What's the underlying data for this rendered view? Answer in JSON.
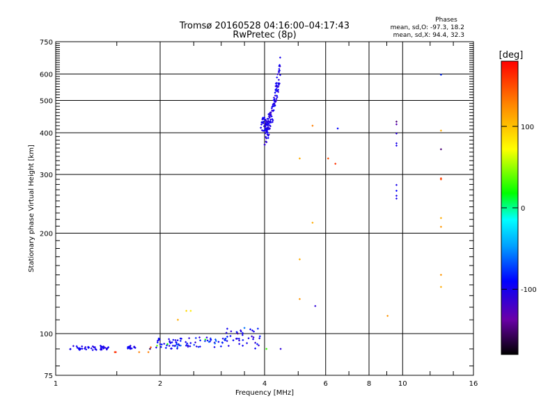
{
  "chart_data": {
    "type": "scatter",
    "title": "Tromsø 20160528 04:16:00–04:17:43",
    "subtitle": "RwPretec (8p)",
    "xlabel": "Frequency [MHz]",
    "ylabel": "Stationary phase Virtual Height [km]",
    "x_scale": "log",
    "y_scale": "log",
    "xlim": [
      1,
      16
    ],
    "ylim": [
      75,
      750
    ],
    "x_ticks": [
      1,
      2,
      4,
      6,
      8,
      10,
      16
    ],
    "x_tick_labels": [
      "1",
      "2",
      "4",
      "6",
      "8",
      "10",
      "16"
    ],
    "y_ticks": [
      75,
      100,
      200,
      300,
      400,
      500,
      600,
      750
    ],
    "y_tick_labels": [
      "75",
      "100",
      "200",
      "300",
      "400",
      "500",
      "600",
      "750"
    ],
    "grid": true,
    "phases": {
      "heading": "Phases",
      "line_o": "mean, sd,O: -97.3, 18.2",
      "line_x": "mean, sd,X: 94.4, 32.3"
    },
    "colorbar": {
      "label": "[deg]",
      "ticks": [
        100,
        0,
        -100
      ],
      "tick_labels": [
        "100",
        "0",
        "-100"
      ],
      "range": [
        -180,
        180
      ]
    },
    "clusters": [
      {
        "xr": [
          1.1,
          1.42
        ],
        "yr": [
          89,
          92
        ],
        "n": 45,
        "phase": [
          -110,
          -90
        ]
      },
      {
        "xr": [
          1.6,
          1.72
        ],
        "yr": [
          90,
          92
        ],
        "n": 14,
        "phase": [
          -110,
          -90
        ]
      },
      {
        "xr": [
          1.88,
          2.25
        ],
        "yr": [
          90,
          97
        ],
        "n": 28,
        "phase": [
          -110,
          -85
        ]
      },
      {
        "xr": [
          2.2,
          3.1
        ],
        "yr": [
          91,
          98
        ],
        "n": 50,
        "phase": [
          -115,
          -60
        ]
      },
      {
        "xr": [
          3.1,
          3.9
        ],
        "yr": [
          90,
          104
        ],
        "n": 36,
        "phase": [
          -115,
          -80
        ]
      },
      {
        "xr": [
          3.9,
          4.1
        ],
        "yr": [
          400,
          445
        ],
        "n": 40,
        "phase": [
          -110,
          -90
        ]
      },
      {
        "xr": [
          4.0,
          4.45
        ],
        "yr": [
          400,
          640
        ],
        "n": 110,
        "phase": [
          -115,
          -90
        ]
      }
    ],
    "points": [
      {
        "x": 1.48,
        "y": 88,
        "phase": 150
      },
      {
        "x": 1.49,
        "y": 88,
        "phase": 170
      },
      {
        "x": 1.85,
        "y": 88,
        "phase": 130
      },
      {
        "x": 1.87,
        "y": 90,
        "phase": -160
      },
      {
        "x": 1.88,
        "y": 91,
        "phase": 150
      },
      {
        "x": 1.74,
        "y": 88,
        "phase": 130
      },
      {
        "x": 1.96,
        "y": 92,
        "phase": 40
      },
      {
        "x": 2.25,
        "y": 110,
        "phase": 110
      },
      {
        "x": 2.38,
        "y": 117,
        "phase": 90
      },
      {
        "x": 2.45,
        "y": 117,
        "phase": 80
      },
      {
        "x": 2.1,
        "y": 93,
        "phase": 20
      },
      {
        "x": 2.7,
        "y": 96,
        "phase": 20
      },
      {
        "x": 3.35,
        "y": 100,
        "phase": -150
      },
      {
        "x": 3.5,
        "y": 104,
        "phase": -60
      },
      {
        "x": 4.05,
        "y": 90,
        "phase": 30
      },
      {
        "x": 4.45,
        "y": 90,
        "phase": -110
      },
      {
        "x": 5.05,
        "y": 335,
        "phase": 110
      },
      {
        "x": 5.05,
        "y": 167,
        "phase": 110
      },
      {
        "x": 5.05,
        "y": 127,
        "phase": 120
      },
      {
        "x": 5.5,
        "y": 420,
        "phase": 130
      },
      {
        "x": 5.5,
        "y": 215,
        "phase": 110
      },
      {
        "x": 5.6,
        "y": 121,
        "phase": -110
      },
      {
        "x": 6.1,
        "y": 335,
        "phase": 150
      },
      {
        "x": 6.4,
        "y": 323,
        "phase": 160
      },
      {
        "x": 6.5,
        "y": 412,
        "phase": -90
      },
      {
        "x": 9.05,
        "y": 113,
        "phase": 120
      },
      {
        "x": 9.6,
        "y": 432,
        "phase": -150
      },
      {
        "x": 9.6,
        "y": 424,
        "phase": -130
      },
      {
        "x": 9.6,
        "y": 398,
        "phase": -110
      },
      {
        "x": 9.6,
        "y": 372,
        "phase": -100
      },
      {
        "x": 9.6,
        "y": 366,
        "phase": -100
      },
      {
        "x": 9.6,
        "y": 279,
        "phase": -100
      },
      {
        "x": 9.6,
        "y": 268,
        "phase": -90
      },
      {
        "x": 9.6,
        "y": 259,
        "phase": -100
      },
      {
        "x": 9.6,
        "y": 254,
        "phase": -100
      },
      {
        "x": 12.9,
        "y": 597,
        "phase": -80
      },
      {
        "x": 12.9,
        "y": 406,
        "phase": 110
      },
      {
        "x": 12.9,
        "y": 357,
        "phase": -150
      },
      {
        "x": 12.9,
        "y": 292,
        "phase": 160
      },
      {
        "x": 12.9,
        "y": 290,
        "phase": 150
      },
      {
        "x": 12.9,
        "y": 222,
        "phase": 110
      },
      {
        "x": 12.9,
        "y": 209,
        "phase": 120
      },
      {
        "x": 12.9,
        "y": 150,
        "phase": 120
      },
      {
        "x": 12.9,
        "y": 138,
        "phase": 110
      }
    ]
  }
}
